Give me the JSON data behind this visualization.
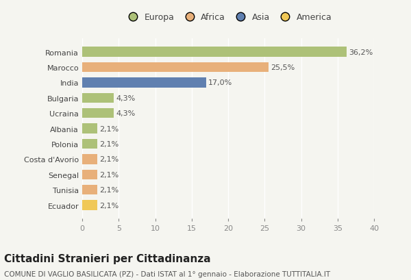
{
  "categories": [
    "Romania",
    "Marocco",
    "India",
    "Bulgaria",
    "Ucraina",
    "Albania",
    "Polonia",
    "Costa d'Avorio",
    "Senegal",
    "Tunisia",
    "Ecuador"
  ],
  "values": [
    36.2,
    25.5,
    17.0,
    4.3,
    4.3,
    2.1,
    2.1,
    2.1,
    2.1,
    2.1,
    2.1
  ],
  "labels": [
    "36,2%",
    "25,5%",
    "17,0%",
    "4,3%",
    "4,3%",
    "2,1%",
    "2,1%",
    "2,1%",
    "2,1%",
    "2,1%",
    "2,1%"
  ],
  "colors": [
    "#adc178",
    "#e8b07a",
    "#6080b0",
    "#adc178",
    "#adc178",
    "#adc178",
    "#adc178",
    "#e8b07a",
    "#e8b07a",
    "#e8b07a",
    "#f0c857"
  ],
  "legend_labels": [
    "Europa",
    "Africa",
    "Asia",
    "America"
  ],
  "legend_colors": [
    "#adc178",
    "#e8b07a",
    "#6080b0",
    "#f0c857"
  ],
  "xlim": [
    0,
    40
  ],
  "xticks": [
    0,
    5,
    10,
    15,
    20,
    25,
    30,
    35,
    40
  ],
  "title": "Cittadini Stranieri per Cittadinanza",
  "subtitle": "COMUNE DI VAGLIO BASILICATA (PZ) - Dati ISTAT al 1° gennaio - Elaborazione TUTTITALIA.IT",
  "bg_color": "#f5f5f0",
  "bar_height": 0.65,
  "title_fontsize": 11,
  "subtitle_fontsize": 7.5,
  "label_fontsize": 8,
  "tick_fontsize": 8,
  "legend_fontsize": 9
}
